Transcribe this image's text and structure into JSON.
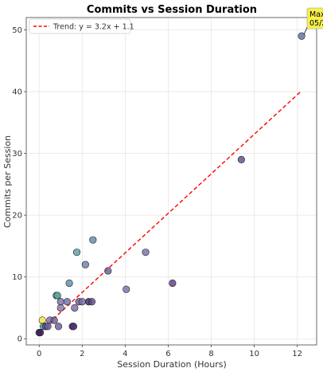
{
  "chart_data": {
    "type": "scatter",
    "title": "Commits vs Session Duration",
    "xlabel": "Session Duration (Hours)",
    "ylabel": "Commits per Session",
    "xlim": [
      -0.6,
      12.9
    ],
    "ylim": [
      -1,
      52
    ],
    "xticks": [
      0,
      2,
      4,
      6,
      8,
      10,
      12
    ],
    "yticks": [
      0,
      10,
      20,
      30,
      40,
      50
    ],
    "grid": true,
    "legend_position": "top-left",
    "series": [
      {
        "name": "Trend: y = 3.2x + 1.1",
        "type": "line",
        "style": "dashed",
        "color": "#ff0000",
        "slope": 3.2,
        "intercept": 1.1,
        "x_range": [
          0,
          12.2
        ]
      }
    ],
    "points": [
      {
        "x": 0.0,
        "y": 1,
        "color": "#2d1b52"
      },
      {
        "x": 0.05,
        "y": 1,
        "color": "#3b1f5e"
      },
      {
        "x": 0.15,
        "y": 3,
        "color": "#f4e33a"
      },
      {
        "x": 0.2,
        "y": 2,
        "color": "#3aa17f"
      },
      {
        "x": 0.3,
        "y": 2,
        "color": "#5b4a8a"
      },
      {
        "x": 0.4,
        "y": 2,
        "color": "#6b5898"
      },
      {
        "x": 0.5,
        "y": 3,
        "color": "#7a6aa6"
      },
      {
        "x": 0.7,
        "y": 3,
        "color": "#6a5a9a"
      },
      {
        "x": 0.8,
        "y": 7,
        "color": "#3b9b8e"
      },
      {
        "x": 0.85,
        "y": 7,
        "color": "#58a89a"
      },
      {
        "x": 0.9,
        "y": 2,
        "color": "#6b5898"
      },
      {
        "x": 1.0,
        "y": 6,
        "color": "#7a6aa6"
      },
      {
        "x": 1.0,
        "y": 5,
        "color": "#8373ad"
      },
      {
        "x": 1.3,
        "y": 6,
        "color": "#6a6aa6"
      },
      {
        "x": 1.4,
        "y": 9,
        "color": "#5a8aa8"
      },
      {
        "x": 1.55,
        "y": 2,
        "color": "#3b1f5e"
      },
      {
        "x": 1.6,
        "y": 2,
        "color": "#4a2f6e"
      },
      {
        "x": 1.65,
        "y": 5,
        "color": "#7a6aa6"
      },
      {
        "x": 1.75,
        "y": 14,
        "color": "#5b9aaa"
      },
      {
        "x": 1.85,
        "y": 6,
        "color": "#6a5a9a"
      },
      {
        "x": 2.0,
        "y": 6,
        "color": "#7a6aa6"
      },
      {
        "x": 2.15,
        "y": 12,
        "color": "#6a7aae"
      },
      {
        "x": 2.3,
        "y": 6,
        "color": "#3b1f5e"
      },
      {
        "x": 2.45,
        "y": 6,
        "color": "#5b4a8a"
      },
      {
        "x": 2.5,
        "y": 16,
        "color": "#5a8aa8"
      },
      {
        "x": 3.2,
        "y": 11,
        "color": "#6a5a9a"
      },
      {
        "x": 4.05,
        "y": 8,
        "color": "#7a6aa6"
      },
      {
        "x": 4.95,
        "y": 14,
        "color": "#7a6aa6"
      },
      {
        "x": 6.2,
        "y": 9,
        "color": "#5b3a7e"
      },
      {
        "x": 9.4,
        "y": 29,
        "color": "#5b4a8a"
      },
      {
        "x": 12.2,
        "y": 49,
        "color": "#5b6a9a"
      }
    ],
    "annotation": {
      "lines": [
        "Max",
        "05/2"
      ],
      "x": 12.2,
      "y": 49,
      "box_color": "#f8f04a"
    }
  }
}
